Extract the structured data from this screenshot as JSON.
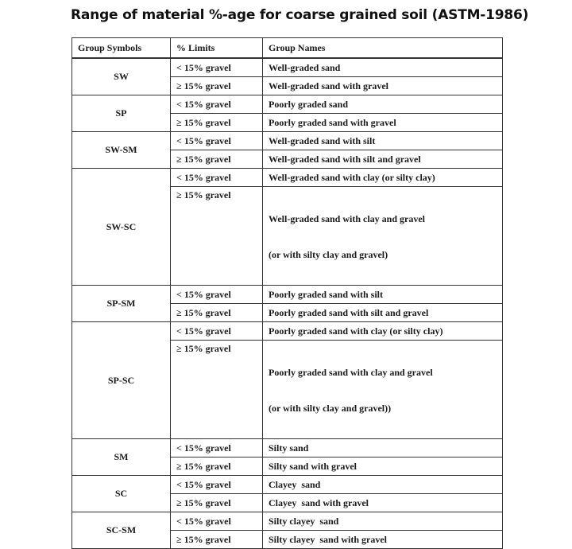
{
  "title": "Range of material %-age for coarse grained soil (ASTM-1986)",
  "table": {
    "headers": [
      "Group Symbols",
      "% Limits",
      "Group Names"
    ],
    "groups": [
      {
        "symbol": "SW",
        "rows": [
          {
            "limit": "< 15% gravel",
            "name": "Well-graded sand"
          },
          {
            "limit": "≥ 15% gravel",
            "name": "Well-graded sand with gravel"
          }
        ]
      },
      {
        "symbol": "SP",
        "rows": [
          {
            "limit": "< 15% gravel",
            "name": "Poorly graded sand"
          },
          {
            "limit": "≥ 15% gravel",
            "name": "Poorly graded sand with gravel"
          }
        ]
      },
      {
        "symbol": "SW-SM",
        "rows": [
          {
            "limit": "< 15% gravel",
            "name": "Well-graded sand with silt"
          },
          {
            "limit": "≥ 15% gravel",
            "name": "Well-graded sand with silt and gravel"
          }
        ]
      },
      {
        "symbol": "SW-SC",
        "rows": [
          {
            "limit": "< 15% gravel",
            "name": "Well-graded sand with clay (or silty clay)"
          },
          {
            "limit": "≥ 15% gravel",
            "name": "Well-graded sand with clay and gravel",
            "name_line2": "(or with silty clay and gravel)"
          }
        ]
      },
      {
        "symbol": "SP-SM",
        "rows": [
          {
            "limit": "< 15% gravel",
            "name": "Poorly graded sand with silt"
          },
          {
            "limit": "≥ 15% gravel",
            "name": "Poorly graded sand with silt and gravel"
          }
        ]
      },
      {
        "symbol": "SP-SC",
        "rows": [
          {
            "limit": "< 15% gravel",
            "name": "Poorly graded sand with clay (or silty clay)"
          },
          {
            "limit": "≥ 15% gravel",
            "name": "Poorly graded sand with clay and gravel",
            "name_line2": "(or with silty clay and gravel))"
          }
        ]
      },
      {
        "symbol": "SM",
        "rows": [
          {
            "limit": "< 15% gravel",
            "name": "Silty sand"
          },
          {
            "limit": "≥ 15% gravel",
            "name": "Silty sand with gravel"
          }
        ]
      },
      {
        "symbol": "SC",
        "rows": [
          {
            "limit": "< 15% gravel",
            "name": "Clayey  sand"
          },
          {
            "limit": "≥ 15% gravel",
            "name": "Clayey  sand with gravel"
          }
        ]
      },
      {
        "symbol": "SC-SM",
        "rows": [
          {
            "limit": "< 15% gravel",
            "name": "Silty clayey  sand"
          },
          {
            "limit": "≥ 15% gravel",
            "name": "Silty clayey  sand with gravel"
          }
        ]
      }
    ]
  }
}
